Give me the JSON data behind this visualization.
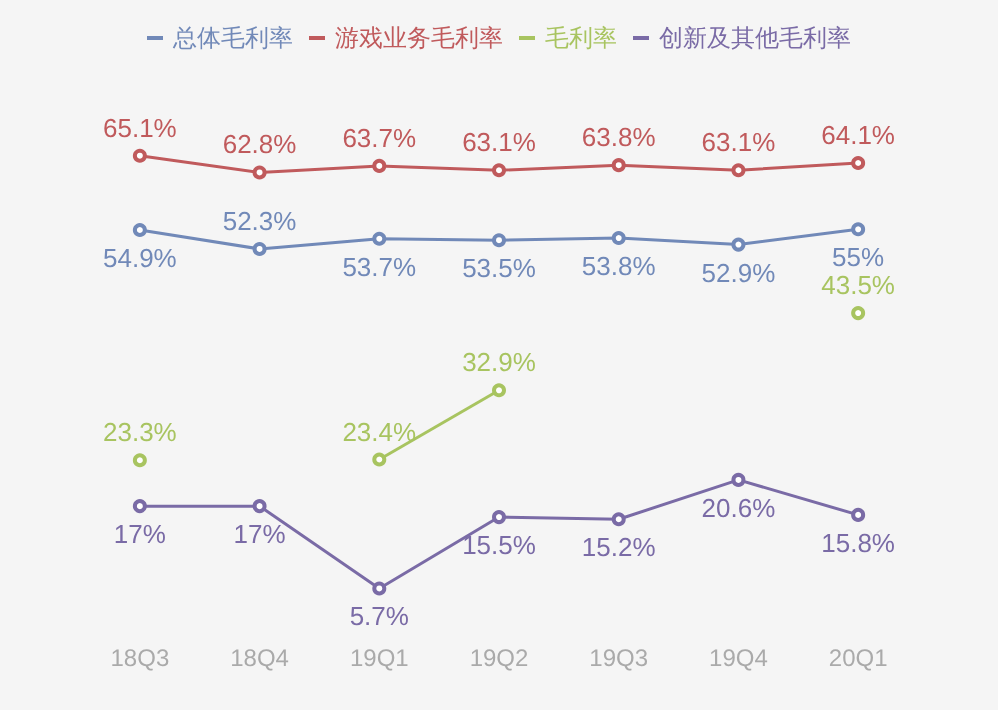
{
  "chart_data": {
    "type": "line",
    "categories": [
      "18Q3",
      "18Q4",
      "19Q1",
      "19Q2",
      "19Q3",
      "19Q4",
      "20Q1"
    ],
    "legend": "top",
    "marker": "circle",
    "grid": false,
    "series": [
      {
        "name": "总体毛利率",
        "color": "#7189b8",
        "values": [
          54.9,
          52.3,
          53.7,
          53.5,
          53.8,
          52.9,
          55
        ],
        "value_labels": [
          "54.9%",
          "52.3%",
          "53.7%",
          "53.5%",
          "53.8%",
          "52.9%",
          "55%"
        ]
      },
      {
        "name": "游戏业务毛利率",
        "color": "#c05a5c",
        "values": [
          65.1,
          62.8,
          63.7,
          63.1,
          63.8,
          63.1,
          64.1
        ],
        "value_labels": [
          "65.1%",
          "62.8%",
          "63.7%",
          "63.1%",
          "63.8%",
          "63.1%",
          "64.1%"
        ]
      },
      {
        "name": "毛利率",
        "color": "#a8c460",
        "values": [
          23.3,
          null,
          23.4,
          32.9,
          null,
          null,
          43.5
        ],
        "value_labels": [
          "23.3%",
          null,
          "23.4%",
          "32.9%",
          null,
          null,
          "43.5%"
        ]
      },
      {
        "name": "创新及其他毛利率",
        "color": "#7a6ba6",
        "values": [
          17,
          17,
          5.7,
          15.5,
          15.2,
          20.6,
          15.8
        ],
        "value_labels": [
          "17%",
          "17%",
          "5.7%",
          "15.5%",
          "15.2%",
          "20.6%",
          "15.8%"
        ]
      }
    ]
  }
}
